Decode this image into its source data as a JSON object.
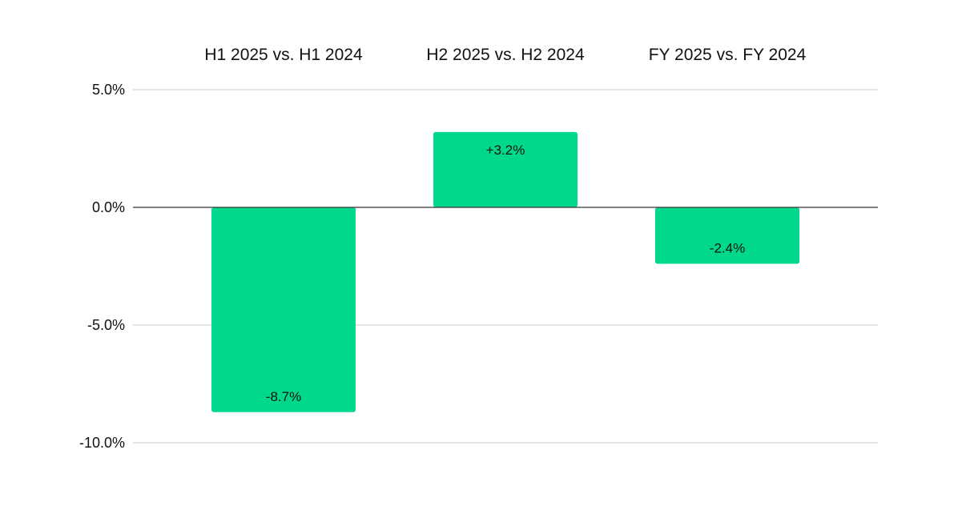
{
  "chart_data": {
    "type": "bar",
    "categories": [
      "H1 2025 vs. H1 2024",
      "H2 2025 vs. H2 2024",
      "FY 2025 vs. FY 2024"
    ],
    "values": [
      -8.7,
      3.2,
      -2.4
    ],
    "data_labels": [
      "-8.7%",
      "+3.2%",
      "-2.4%"
    ],
    "y_ticks": [
      5.0,
      0.0,
      -5.0,
      -10.0
    ],
    "y_tick_labels": [
      "5.0%",
      "0.0%",
      "-5.0%",
      "-10.0%"
    ],
    "ylim": [
      -10.0,
      5.0
    ],
    "title": "",
    "xlabel": "",
    "ylabel": "",
    "category_labels_position": "top",
    "grid": true,
    "legend": false,
    "bar_color": "#00d98b"
  }
}
